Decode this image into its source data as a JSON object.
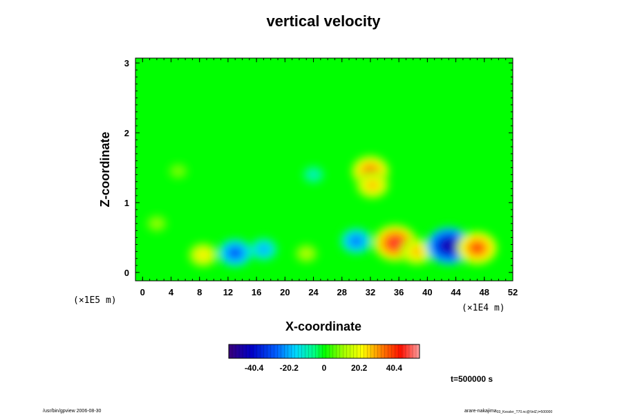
{
  "chart_data": {
    "type": "heatmap",
    "title": "vertical velocity",
    "xlabel": "X-coordinate",
    "ylabel": "Z-coordinate",
    "x_scale_note": "(×1E4 m)",
    "y_scale_note": "(×1E5 m)",
    "xlim": [
      -1,
      52
    ],
    "ylim": [
      -0.12,
      3.07
    ],
    "x_ticks": [
      "0",
      "4",
      "8",
      "12",
      "16",
      "20",
      "24",
      "28",
      "32",
      "36",
      "40",
      "44",
      "48",
      "52"
    ],
    "y_ticks": [
      "0",
      "1",
      "2",
      "3"
    ],
    "colorbar": {
      "min": -55,
      "max": 55,
      "ticks": [
        "-40.4",
        "-20.2",
        "0",
        "20.2",
        "40.4"
      ],
      "tick_values": [
        -40.4,
        -20.2,
        0,
        20.2,
        40.4
      ]
    },
    "background_value": 0,
    "features": [
      {
        "x": 8.5,
        "z": 0.25,
        "value": 25
      },
      {
        "x": 13.0,
        "z": 0.28,
        "value": -32
      },
      {
        "x": 17.0,
        "z": 0.33,
        "value": -22
      },
      {
        "x": 23.0,
        "z": 0.27,
        "value": 15
      },
      {
        "x": 30.0,
        "z": 0.45,
        "value": -28
      },
      {
        "x": 35.5,
        "z": 0.42,
        "value": 48
      },
      {
        "x": 38.5,
        "z": 0.3,
        "value": 30
      },
      {
        "x": 43.0,
        "z": 0.38,
        "value": -50
      },
      {
        "x": 47.0,
        "z": 0.35,
        "value": 42
      },
      {
        "x": 32.0,
        "z": 1.45,
        "value": 38
      },
      {
        "x": 32.3,
        "z": 1.25,
        "value": 30
      },
      {
        "x": 24.0,
        "z": 1.4,
        "value": -12
      },
      {
        "x": 2.0,
        "z": 0.7,
        "value": 12
      },
      {
        "x": 5.0,
        "z": 1.45,
        "value": 10
      }
    ]
  },
  "time_label": "t=500000 s",
  "footer": {
    "left": "/usr/bin/gpview 2006-08-30",
    "right": "arare-nakajima",
    "right_small": "03_Kessler_T70.nc@VelZ,t=500000"
  }
}
